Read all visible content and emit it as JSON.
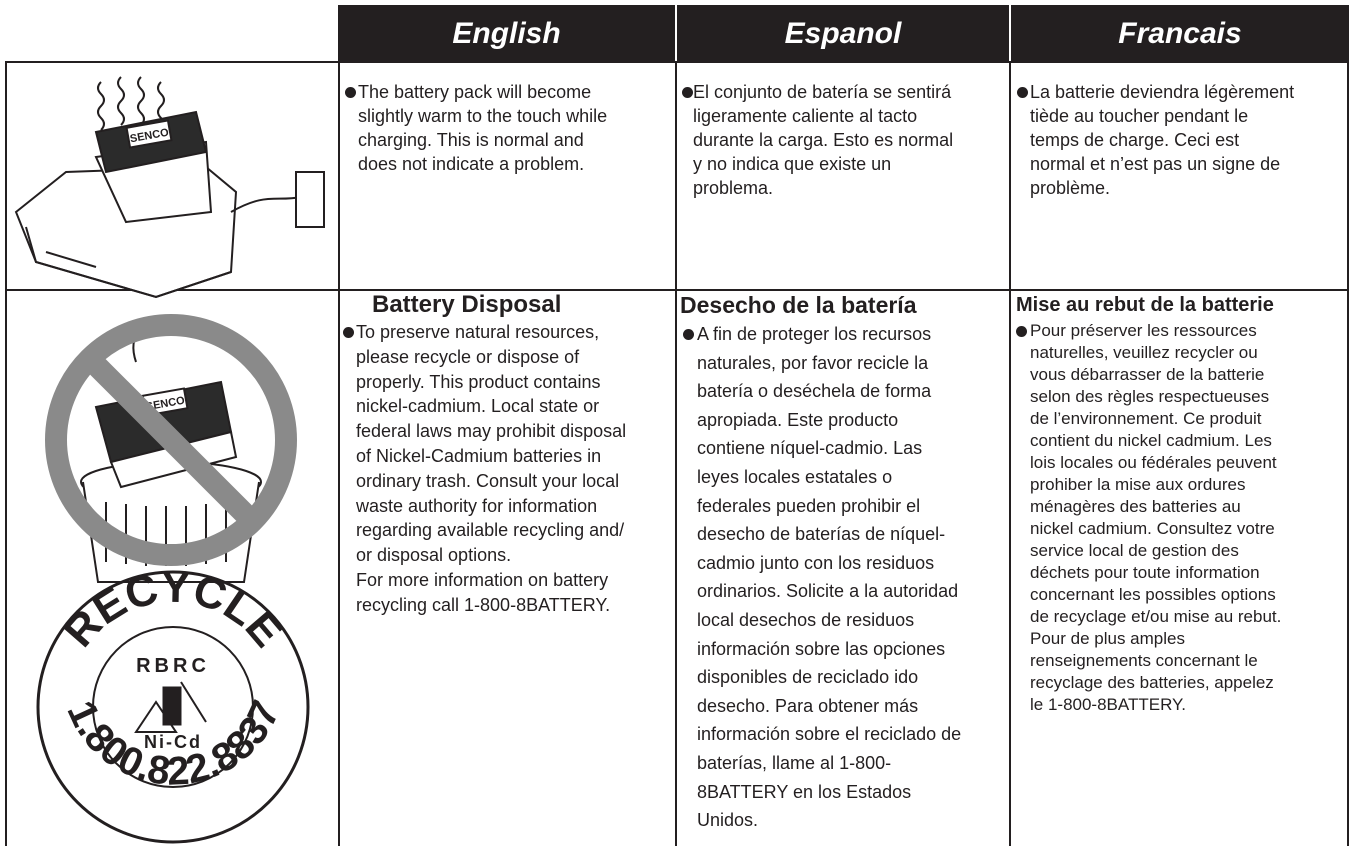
{
  "header": {
    "columns": [
      "English",
      "Espanol",
      "Francais"
    ]
  },
  "rows": [
    {
      "image": {
        "label": "SENCO"
      },
      "english": {
        "lines": [
          "The battery pack will become",
          "slightly warm to the touch while",
          "charging. This is normal and",
          "does not indicate a problem."
        ]
      },
      "espanol": {
        "lines": [
          "El conjunto de batería se sentirá",
          "ligeramente caliente al tacto",
          "durante la carga. Esto es normal",
          "y no indica que existe un",
          "problema."
        ]
      },
      "francais": {
        "lines": [
          "La batterie deviendra légèrement",
          "tiède au toucher pendant le",
          "temps de charge. Ceci est",
          "normal et n’est pas un signe de",
          "problème."
        ]
      }
    },
    {
      "image": {
        "label": "SENCO",
        "recycle": {
          "text": "RECYCLE",
          "org": "RBRC",
          "chemistry": "Ni-Cd",
          "phone": "1.800.822.8837"
        }
      },
      "english": {
        "heading": "Battery Disposal",
        "lines": [
          "To preserve natural resources,",
          "please recycle or dispose of",
          "properly. This product contains",
          "nickel-cadmium. Local state or",
          "federal laws may prohibit disposal",
          "of Nickel-Cadmium batteries in",
          "ordinary trash. Consult your local",
          "waste authority for information",
          "regarding available recycling and/",
          "or disposal options."
        ],
        "note": [
          "For more information on battery",
          "recycling call 1-800-8BATTERY."
        ]
      },
      "espanol": {
        "heading": "Desecho de la batería",
        "lines": [
          "A fin de proteger los recursos",
          "naturales, por favor recicle la",
          "batería o deséchela de forma",
          "apropiada. Este producto",
          "contiene níquel-cadmio. Las",
          "leyes locales estatales o",
          "federales pueden prohibir el",
          "desecho de baterías de níquel-",
          "cadmio junto con los residuos",
          "ordinarios. Solicite a la autoridad",
          "local desechos de residuos",
          "información sobre las opciones",
          "disponibles de reciclado ido",
          "desecho. Para obtener más",
          "información sobre el reciclado de",
          "baterías, llame al 1-800-",
          "8BATTERY en los Estados",
          "Unidos."
        ]
      },
      "francais": {
        "heading": "Mise au rebut de la batterie",
        "lines": [
          "Pour préserver les ressources",
          "naturelles, veuillez recycler ou",
          "vous débarrasser de la batterie",
          "selon des règles respectueuses",
          "de l’environnement. Ce produit",
          "contient du nickel cadmium. Les",
          "lois locales ou fédérales peuvent",
          "prohiber la mise aux ordures",
          "ménagères des batteries au",
          "nickel cadmium. Consultez votre",
          "service local de gestion des",
          "déchets pour toute information",
          "concernant les possibles options",
          "de recyclage et/ou mise au rebut.",
          "Pour de plus amples",
          "renseignements concernant le",
          "recyclage des batteries, appelez",
          "le 1-800-8BATTERY."
        ]
      }
    }
  ]
}
